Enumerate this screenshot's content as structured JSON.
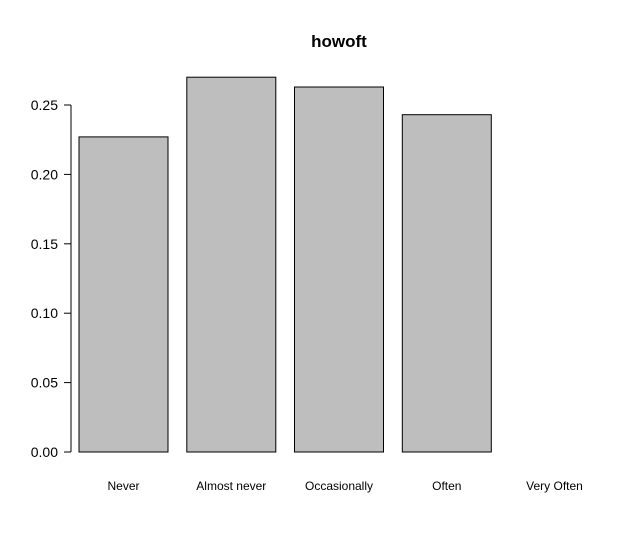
{
  "chart_data": {
    "type": "bar",
    "title": "howoft",
    "xlabel": "",
    "ylabel": "",
    "categories": [
      "Never",
      "Almost never",
      "Occasionally",
      "Often",
      "Very Often"
    ],
    "values": [
      0.227,
      0.27,
      0.263,
      0.243,
      0.0
    ],
    "ylim": [
      0,
      0.27
    ],
    "yticks": [
      "0.00",
      "0.05",
      "0.10",
      "0.15",
      "0.20",
      "0.25"
    ],
    "bar_color": "#bebebe",
    "grid": false,
    "legend": "none"
  }
}
